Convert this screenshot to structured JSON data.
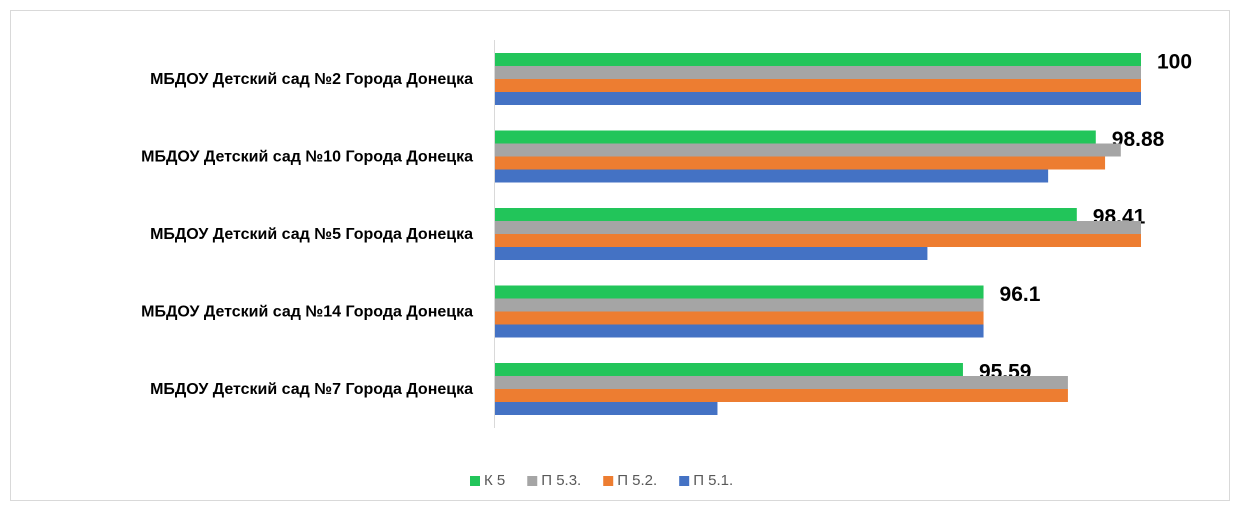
{
  "chart_data": {
    "type": "bar",
    "orientation": "horizontal",
    "categories": [
      "МБДОУ Детский сад №2 Города Донецка",
      "МБДОУ Детский сад №10 Города Донецка",
      "МБДОУ Детский сад №5 Города Донецка",
      "МБДОУ Детский сад №14 Города Донецка",
      "МБДОУ Детский сад №7 Города Донецка"
    ],
    "series": [
      {
        "name": "К 5",
        "color": "#22c55a",
        "values": [
          100,
          98.88,
          98.41,
          96.1,
          95.59
        ],
        "data_labels": true
      },
      {
        "name": "П 5.3.",
        "color": "#a5a5a5",
        "values": [
          100,
          99.5,
          100,
          96.1,
          98.19
        ]
      },
      {
        "name": "П 5.2.",
        "color": "#ed7d31",
        "values": [
          100,
          99.11,
          100,
          96.1,
          98.19
        ]
      },
      {
        "name": "П 5.1.",
        "color": "#4472c4",
        "values": [
          100,
          97.7,
          94.71,
          96.1,
          89.51
        ]
      }
    ],
    "xlim": [
      84,
      100
    ],
    "legend": "bottom"
  }
}
